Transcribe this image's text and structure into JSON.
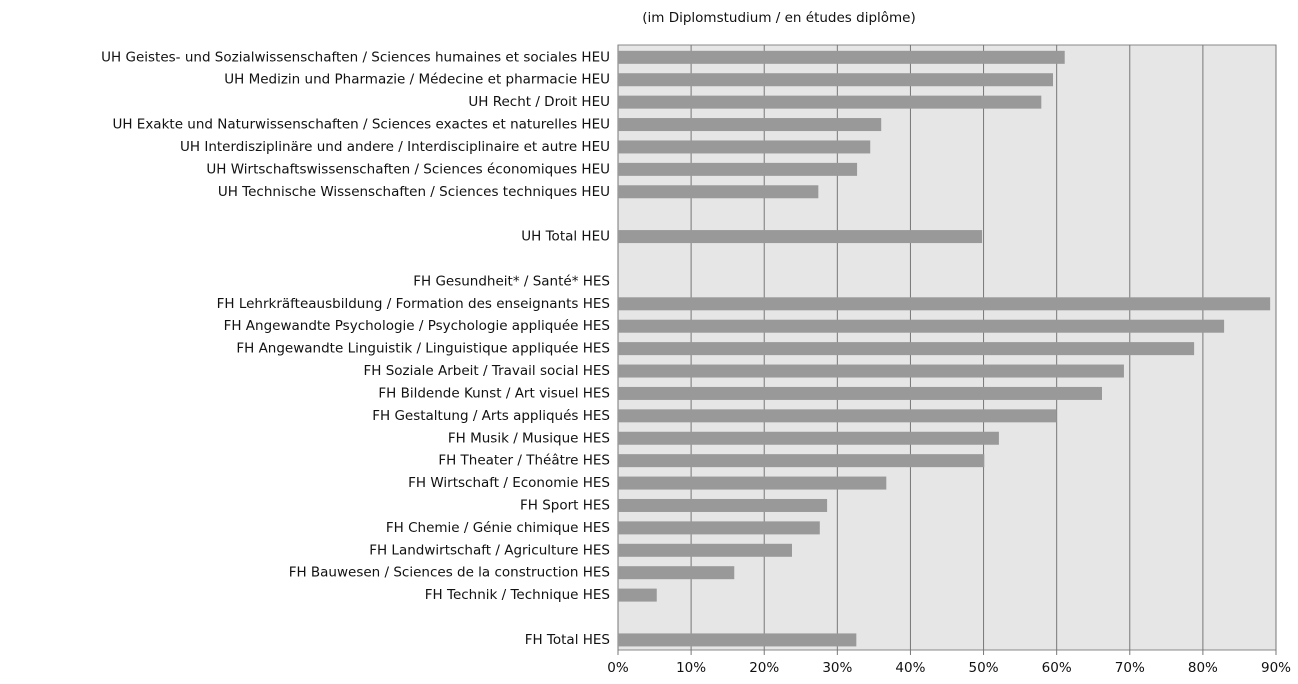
{
  "chart_data": {
    "type": "bar",
    "orientation": "horizontal",
    "subtitle": "(im Diplomstudium / en études diplôme)",
    "categories": [
      "UH Geistes- und Sozialwissenschaften / Sciences humaines et sociales HEU",
      "UH Medizin und Pharmazie / Médecine  et pharmacie HEU",
      "UH Recht / Droit HEU",
      "UH Exakte und Naturwissenschaften / Sciences exactes et naturelles HEU",
      "UH Interdisziplinäre und andere / Interdisciplinaire et autre HEU",
      "UH Wirtschaftswissenschaften / Sciences économiques HEU",
      "UH Technische Wissenschaften / Sciences techniques HEU",
      null,
      "UH Total HEU",
      null,
      "FH Gesundheit* / Santé* HES",
      "FH Lehrkräfteausbildung / Formation des enseignants HES",
      "FH Angewandte Psychologie / Psychologie appliquée HES",
      "FH Angewandte Linguistik / Linguistique appliquée HES",
      "FH Soziale Arbeit / Travail social HES",
      "FH Bildende Kunst / Art visuel HES",
      "FH Gestaltung / Arts appliqués HES",
      "FH Musik / Musique HES",
      "FH Theater / Théâtre HES",
      "FH Wirtschaft / Economie HES",
      "FH Sport HES",
      "FH Chemie / Génie chimique HES",
      "FH Landwirtschaft / Agriculture HES",
      "FH Bauwesen / Sciences de la construction HES",
      "FH Technik / Technique HES",
      null,
      "FH Total HES"
    ],
    "values": [
      61.1,
      59.5,
      57.9,
      36,
      34.5,
      32.7,
      27.4,
      null,
      49.8,
      null,
      null,
      89.2,
      82.9,
      78.8,
      69.2,
      66.2,
      60,
      52.1,
      50.1,
      36.7,
      28.6,
      27.6,
      23.8,
      15.9,
      5.3,
      null,
      32.6
    ],
    "color": "#999999",
    "xlim": [
      0,
      90
    ],
    "xticks": [
      {
        "value": 0,
        "label": "0%"
      },
      {
        "value": 10,
        "label": "10%"
      },
      {
        "value": 20,
        "label": "20%"
      },
      {
        "value": 30,
        "label": "30%"
      },
      {
        "value": 40,
        "label": "40%"
      },
      {
        "value": 50,
        "label": "50%"
      },
      {
        "value": 60,
        "label": "60%"
      },
      {
        "value": 70,
        "label": "70%"
      },
      {
        "value": 80,
        "label": "80%"
      },
      {
        "value": 90,
        "label": "90%"
      }
    ],
    "grid": true
  }
}
